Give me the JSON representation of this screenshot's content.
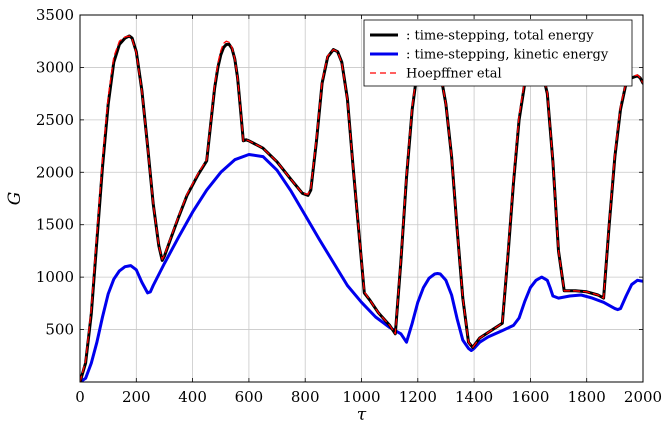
{
  "chart_data": {
    "type": "line",
    "xlabel": "τ",
    "ylabel": "G",
    "xlim": [
      0,
      2000
    ],
    "ylim": [
      0,
      3500
    ],
    "xticks": [
      0,
      200,
      400,
      600,
      800,
      1000,
      1200,
      1400,
      1600,
      1800,
      2000
    ],
    "yticks": [
      500,
      1000,
      1500,
      2000,
      2500,
      3000,
      3500
    ],
    "grid": true,
    "legend_position": "top-right",
    "series": [
      {
        "name": ": time-stepping, total energy",
        "color": "#000000",
        "style": "solid",
        "x": [
          0,
          20,
          40,
          60,
          80,
          100,
          120,
          140,
          160,
          175,
          185,
          200,
          220,
          240,
          260,
          280,
          292,
          300,
          320,
          350,
          380,
          400,
          420,
          450,
          470,
          478,
          490,
          500,
          510,
          520,
          530,
          540,
          550,
          560,
          570,
          580,
          590,
          600,
          650,
          700,
          750,
          790,
          810,
          820,
          840,
          860,
          880,
          900,
          915,
          930,
          950,
          970,
          990,
          1010,
          1030,
          1060,
          1100,
          1120,
          1140,
          1160,
          1180,
          1200,
          1220,
          1240,
          1260,
          1280,
          1300,
          1320,
          1340,
          1360,
          1380,
          1395,
          1420,
          1460,
          1500,
          1520,
          1540,
          1560,
          1580,
          1600,
          1620,
          1640,
          1660,
          1680,
          1700,
          1720,
          1740,
          1760,
          1800,
          1840,
          1860,
          1880,
          1900,
          1920,
          1940,
          1960,
          1980,
          1990,
          2000
        ],
        "y": [
          0,
          180,
          650,
          1350,
          2050,
          2650,
          3050,
          3220,
          3280,
          3300,
          3280,
          3150,
          2780,
          2250,
          1700,
          1300,
          1160,
          1200,
          1350,
          1570,
          1780,
          1880,
          1980,
          2110,
          2600,
          2800,
          3000,
          3120,
          3190,
          3220,
          3220,
          3180,
          3080,
          2900,
          2600,
          2300,
          2310,
          2300,
          2230,
          2100,
          1930,
          1800,
          1780,
          1830,
          2300,
          2850,
          3100,
          3170,
          3150,
          3050,
          2700,
          2050,
          1450,
          850,
          780,
          660,
          540,
          460,
          1150,
          1950,
          2600,
          3000,
          3050,
          3060,
          3050,
          2950,
          2650,
          2150,
          1450,
          800,
          380,
          330,
          420,
          490,
          560,
          1200,
          1900,
          2500,
          2850,
          2950,
          3000,
          2980,
          2750,
          2100,
          1250,
          870,
          870,
          870,
          860,
          830,
          800,
          1500,
          2150,
          2600,
          2850,
          2900,
          2920,
          2900,
          2850
        ]
      },
      {
        "name": ": time-stepping, kinetic energy",
        "color": "#0000ee",
        "style": "solid",
        "x": [
          0,
          20,
          40,
          60,
          80,
          100,
          120,
          140,
          160,
          180,
          200,
          220,
          240,
          250,
          260,
          300,
          350,
          400,
          450,
          500,
          550,
          600,
          650,
          700,
          750,
          800,
          850,
          900,
          950,
          1000,
          1050,
          1100,
          1140,
          1160,
          1180,
          1200,
          1220,
          1240,
          1260,
          1270,
          1280,
          1300,
          1320,
          1340,
          1360,
          1380,
          1390,
          1400,
          1420,
          1450,
          1500,
          1540,
          1560,
          1580,
          1600,
          1620,
          1640,
          1660,
          1670,
          1680,
          1700,
          1740,
          1780,
          1820,
          1860,
          1900,
          1910,
          1920,
          1940,
          1960,
          1980,
          2000
        ],
        "y": [
          0,
          35,
          180,
          380,
          620,
          840,
          980,
          1060,
          1100,
          1110,
          1070,
          950,
          850,
          860,
          920,
          1130,
          1380,
          1620,
          1830,
          2000,
          2120,
          2170,
          2150,
          2020,
          1820,
          1590,
          1360,
          1140,
          920,
          760,
          620,
          520,
          460,
          380,
          560,
          760,
          900,
          990,
          1030,
          1035,
          1030,
          970,
          830,
          600,
          400,
          320,
          300,
          320,
          380,
          430,
          490,
          540,
          610,
          770,
          900,
          970,
          1000,
          970,
          900,
          820,
          800,
          820,
          830,
          800,
          760,
          700,
          690,
          700,
          820,
          930,
          970,
          960
        ]
      },
      {
        "name": "Hoepffner etal",
        "color": "#ff0000",
        "style": "dashed",
        "x": [
          0,
          20,
          40,
          60,
          80,
          100,
          120,
          140,
          160,
          175,
          185,
          200,
          220,
          240,
          260,
          280,
          292,
          300,
          320,
          350,
          380,
          400,
          420,
          450,
          470,
          478,
          490,
          500,
          510,
          520,
          530,
          540,
          550,
          560,
          570,
          580,
          590,
          600,
          650,
          700,
          750,
          790,
          810,
          820,
          840,
          860,
          880,
          900,
          915,
          930,
          950,
          970,
          990,
          1010,
          1030,
          1060,
          1100,
          1120,
          1140,
          1160,
          1180,
          1200,
          1220,
          1240,
          1260,
          1280,
          1300,
          1320,
          1340,
          1360,
          1380,
          1395,
          1420,
          1460,
          1500,
          1520,
          1540,
          1560,
          1580,
          1600,
          1620,
          1640,
          1660,
          1680,
          1700,
          1720,
          1740,
          1760,
          1800,
          1840,
          1860,
          1880,
          1900,
          1920,
          1940,
          1960,
          1980,
          1990,
          2000
        ],
        "y": [
          0,
          200,
          700,
          1420,
          2120,
          2720,
          3100,
          3250,
          3290,
          3300,
          3270,
          3140,
          2770,
          2240,
          1700,
          1300,
          1170,
          1210,
          1360,
          1580,
          1790,
          1890,
          1990,
          2120,
          2620,
          2830,
          3040,
          3160,
          3230,
          3250,
          3240,
          3190,
          3080,
          2900,
          2600,
          2300,
          2310,
          2300,
          2230,
          2100,
          1930,
          1800,
          1790,
          1850,
          2330,
          2870,
          3110,
          3170,
          3150,
          3040,
          2690,
          2050,
          1460,
          860,
          780,
          660,
          540,
          460,
          1180,
          1980,
          2630,
          3020,
          3070,
          3070,
          3050,
          2950,
          2650,
          2150,
          1450,
          800,
          380,
          330,
          420,
          490,
          560,
          1230,
          1940,
          2540,
          2880,
          2970,
          3010,
          2990,
          2760,
          2100,
          1250,
          870,
          870,
          870,
          860,
          830,
          800,
          1520,
          2180,
          2630,
          2860,
          2910,
          2930,
          2900,
          2850
        ]
      }
    ]
  }
}
